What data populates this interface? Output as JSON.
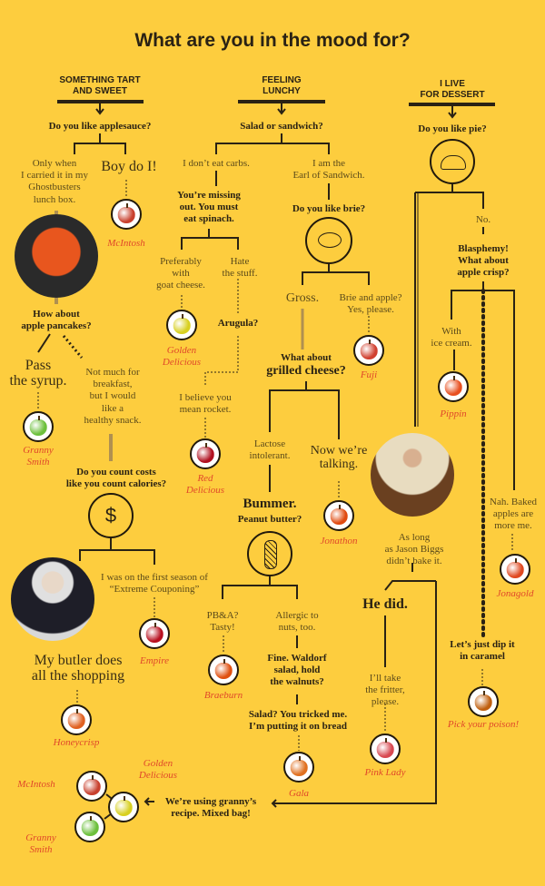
{
  "title": "What are you in the mood for?",
  "columns": {
    "tart": {
      "header": "SOMETHING TART\nAND SWEET",
      "q1": "Do you like applesauce?",
      "a_lunchbox": "Only when\nI carried it in my\nGhostbusters\nlunch box.",
      "a_boy": "Boy do I!",
      "q_pancakes": "How about\napple pancakes?",
      "a_syrup": "Pass\nthe syrup.",
      "a_snack": "Not much for\nbreakfast,\nbut I would\nlike a\nhealthy snack.",
      "q_costs": "Do you count costs\nlike you count calories?",
      "a_couponing": "I was on the first season of\n“Extreme Couponing”",
      "a_butler": "My butler does\nall the shopping",
      "mixed_bag": "We’re using granny’s\nrecipe. Mixed bag!"
    },
    "lunchy": {
      "header": "FEELING\nLUNCHY",
      "q1": "Salad or sandwich?",
      "a_carbs": "I don’t eat carbs.",
      "a_earl": "I am the\nEarl of Sandwich.",
      "spinach": "You’re missing\nout. You must\neat spinach.",
      "a_goat": "Preferably\nwith\ngoat cheese.",
      "a_hate": "Hate\nthe stuff.",
      "arugula": "Arugula?",
      "rocket": "I believe you\nmean rocket.",
      "q_brie": "Do you like brie?",
      "a_gross": "Gross.",
      "a_brie_apple": "Brie and apple?\nYes, please.",
      "q_grilled_1": "What about",
      "q_grilled_2": "grilled cheese?",
      "a_lactose": "Lactose\nintolerant.",
      "a_talking": "Now we’re\ntalking.",
      "bummer": "Bummer.",
      "peanut": "Peanut butter?",
      "a_pba": "PB&A?\nTasty!",
      "a_allergic": "Allergic to\nnuts, too.",
      "waldorf": "Fine. Waldorf\nsalad, hold\nthe walnuts?",
      "tricked": "Salad? You tricked me.\nI’m putting it on bread"
    },
    "dessert": {
      "header": "I LIVE\nFOR DESSERT",
      "q1": "Do you like pie?",
      "a_no": "No.",
      "blasphemy": "Blasphemy!\nWhat about\napple crisp?",
      "a_icecream": "With\nice cream.",
      "a_biggs": "As long\nas Jason Biggs\ndidn’t bake it.",
      "he_did": "He did.",
      "fritter": "I’ll take\nthe fritter,\nplease.",
      "a_baked": "Nah. Baked\napples are\nmore me.",
      "caramel": "Let’s just dip it\nin caramel"
    }
  },
  "apples": {
    "mcintosh": {
      "name": "McIntosh",
      "color": "#c8402e"
    },
    "granny1": {
      "name": "Granny\nSmith",
      "color": "#6cc03c"
    },
    "golden": {
      "name": "Golden\nDelicious",
      "color": "#d8d020"
    },
    "red": {
      "name": "Red\nDelicious",
      "color": "#b01020"
    },
    "fuji": {
      "name": "Fuji",
      "color": "#d04030"
    },
    "jonathon": {
      "name": "Jonathon",
      "color": "#e04a10"
    },
    "pippin": {
      "name": "Pippin",
      "color": "#e85020"
    },
    "empire": {
      "name": "Empire",
      "color": "#b81020"
    },
    "braeburn": {
      "name": "Braeburn",
      "color": "#e05010"
    },
    "honeycrisp": {
      "name": "Honeycrisp",
      "color": "#e06020"
    },
    "gala": {
      "name": "Gala",
      "color": "#e07020"
    },
    "pinklady": {
      "name": "Pink Lady",
      "color": "#d84850"
    },
    "jonagold": {
      "name": "Jonagold",
      "color": "#e04820"
    },
    "poison": {
      "name": "Pick your poison!",
      "color": "#c06010"
    },
    "mix_mcintosh": {
      "name": "McIntosh",
      "color": "#c8402e"
    },
    "mix_golden": {
      "name": "Golden\nDelicious",
      "color": "#d8d020"
    },
    "mix_granny": {
      "name": "Granny\nSmith",
      "color": "#6cc03c"
    }
  },
  "colors": {
    "background": "#fdcd3e",
    "ink": "#2a2214",
    "label": "#e0482a"
  }
}
